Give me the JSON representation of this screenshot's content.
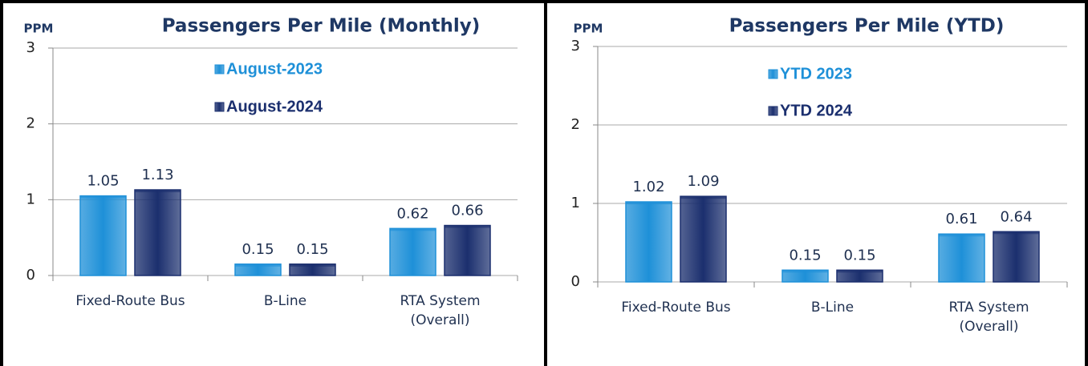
{
  "chart_data": [
    {
      "type": "bar",
      "title": "Passengers Per Mile (Monthly)",
      "y_label": "PPM",
      "categories": [
        "Fixed-Route Bus",
        "B-Line",
        "RTA System (Overall)"
      ],
      "series": [
        {
          "name": "August-2023",
          "color": "#1e90d8",
          "values": [
            1.05,
            0.15,
            0.62
          ]
        },
        {
          "name": "August-2024",
          "color": "#1b2f6e",
          "values": [
            1.13,
            0.15,
            0.66
          ]
        }
      ],
      "ylim": [
        0,
        3
      ],
      "yticks": [
        0,
        1,
        2,
        3
      ],
      "grid": true
    },
    {
      "type": "bar",
      "title": "Passengers Per Mile (YTD)",
      "y_label": "PPM",
      "categories": [
        "Fixed-Route Bus",
        "B-Line",
        "RTA System (Overall)"
      ],
      "series": [
        {
          "name": "YTD 2023",
          "color": "#1e90d8",
          "values": [
            1.02,
            0.15,
            0.61
          ]
        },
        {
          "name": "YTD 2024",
          "color": "#1b2f6e",
          "values": [
            1.09,
            0.15,
            0.64
          ]
        }
      ],
      "ylim": [
        0,
        3
      ],
      "yticks": [
        0,
        1,
        2,
        3
      ],
      "grid": true
    }
  ]
}
